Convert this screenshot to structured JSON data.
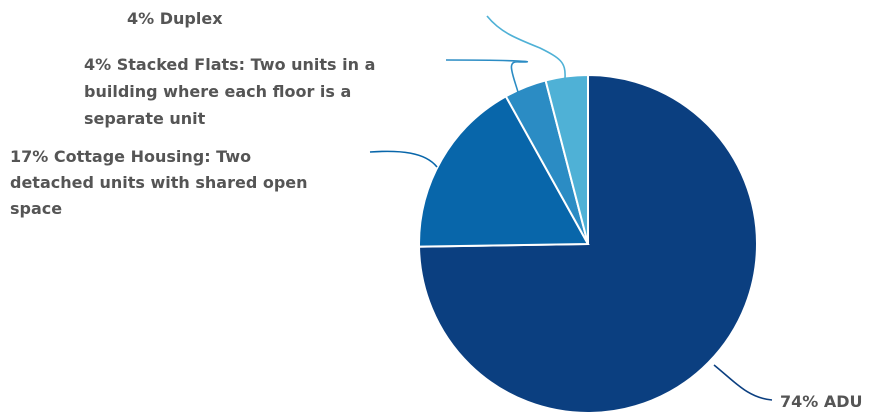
{
  "chart_data": {
    "type": "pie",
    "title": "",
    "start_angle_deg": 90,
    "direction": "clockwise",
    "slices": [
      {
        "label": "ADU",
        "value": 74,
        "color": "#0b3f80",
        "label_lines": [
          "74% ADU"
        ]
      },
      {
        "label": "Cottage Housing",
        "value": 17,
        "color": "#0866aa",
        "label_lines": [
          "17% Cottage Housing: Two",
          "detached units with shared open",
          "space"
        ]
      },
      {
        "label": "Stacked Flats",
        "value": 4,
        "color": "#2b8cc4",
        "label_lines": [
          "4% Stacked Flats: Two units in a",
          "building where each floor is a",
          "separate unit"
        ]
      },
      {
        "label": "Duplex",
        "value": 4,
        "color": "#4fb1d6",
        "label_lines": [
          "4% Duplex"
        ]
      }
    ],
    "legend": "none"
  }
}
